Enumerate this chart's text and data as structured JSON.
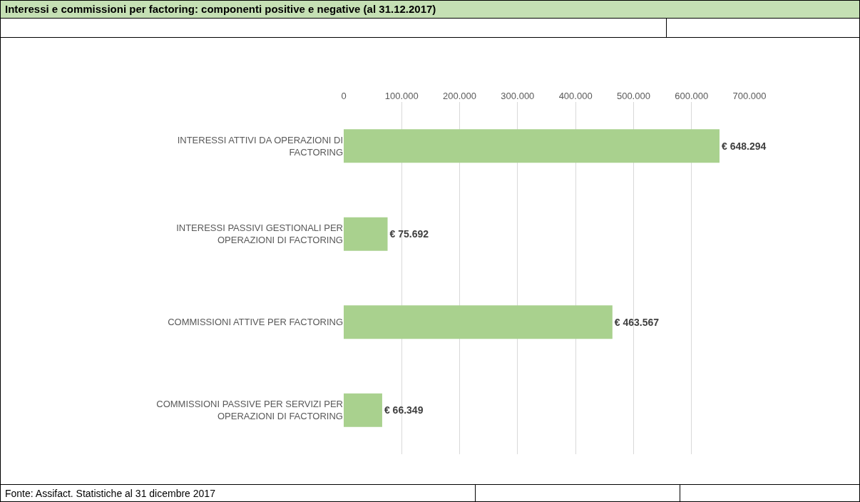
{
  "chart_data": {
    "type": "bar",
    "orientation": "horizontal",
    "title": "Interessi e commissioni per factoring: componenti positive e negative (al 31.12.2017)",
    "categories": [
      "INTERESSI ATTIVI DA OPERAZIONI DI FACTORING",
      "INTERESSI PASSIVI GESTIONALI PER OPERAZIONI DI FACTORING",
      "COMMISSIONI ATTIVE PER FACTORING",
      "COMMISSIONI PASSIVE PER SERVIZI PER OPERAZIONI DI FACTORING"
    ],
    "values": [
      648294,
      75692,
      463567,
      66349
    ],
    "value_labels": [
      "€ 648.294",
      "€ 75.692",
      "€ 463.567",
      "€ 66.349"
    ],
    "color": "#a9d18e",
    "xlim": [
      0,
      700000
    ],
    "xticks": [
      0,
      {
        "value": 100000,
        "label": "100.000"
      },
      {
        "value": 200000,
        "label": "200.000"
      },
      {
        "value": 300000,
        "label": "300.000"
      },
      {
        "value": 400000,
        "label": "400.000"
      },
      {
        "value": 500000,
        "label": "500.000"
      },
      {
        "value": 600000,
        "label": "600.000"
      },
      {
        "value": 700000,
        "label": "700.000"
      }
    ],
    "grid": "x",
    "annotations": [
      "Fonte: Assifact. Statistiche al 31 dicembre 2017"
    ]
  }
}
